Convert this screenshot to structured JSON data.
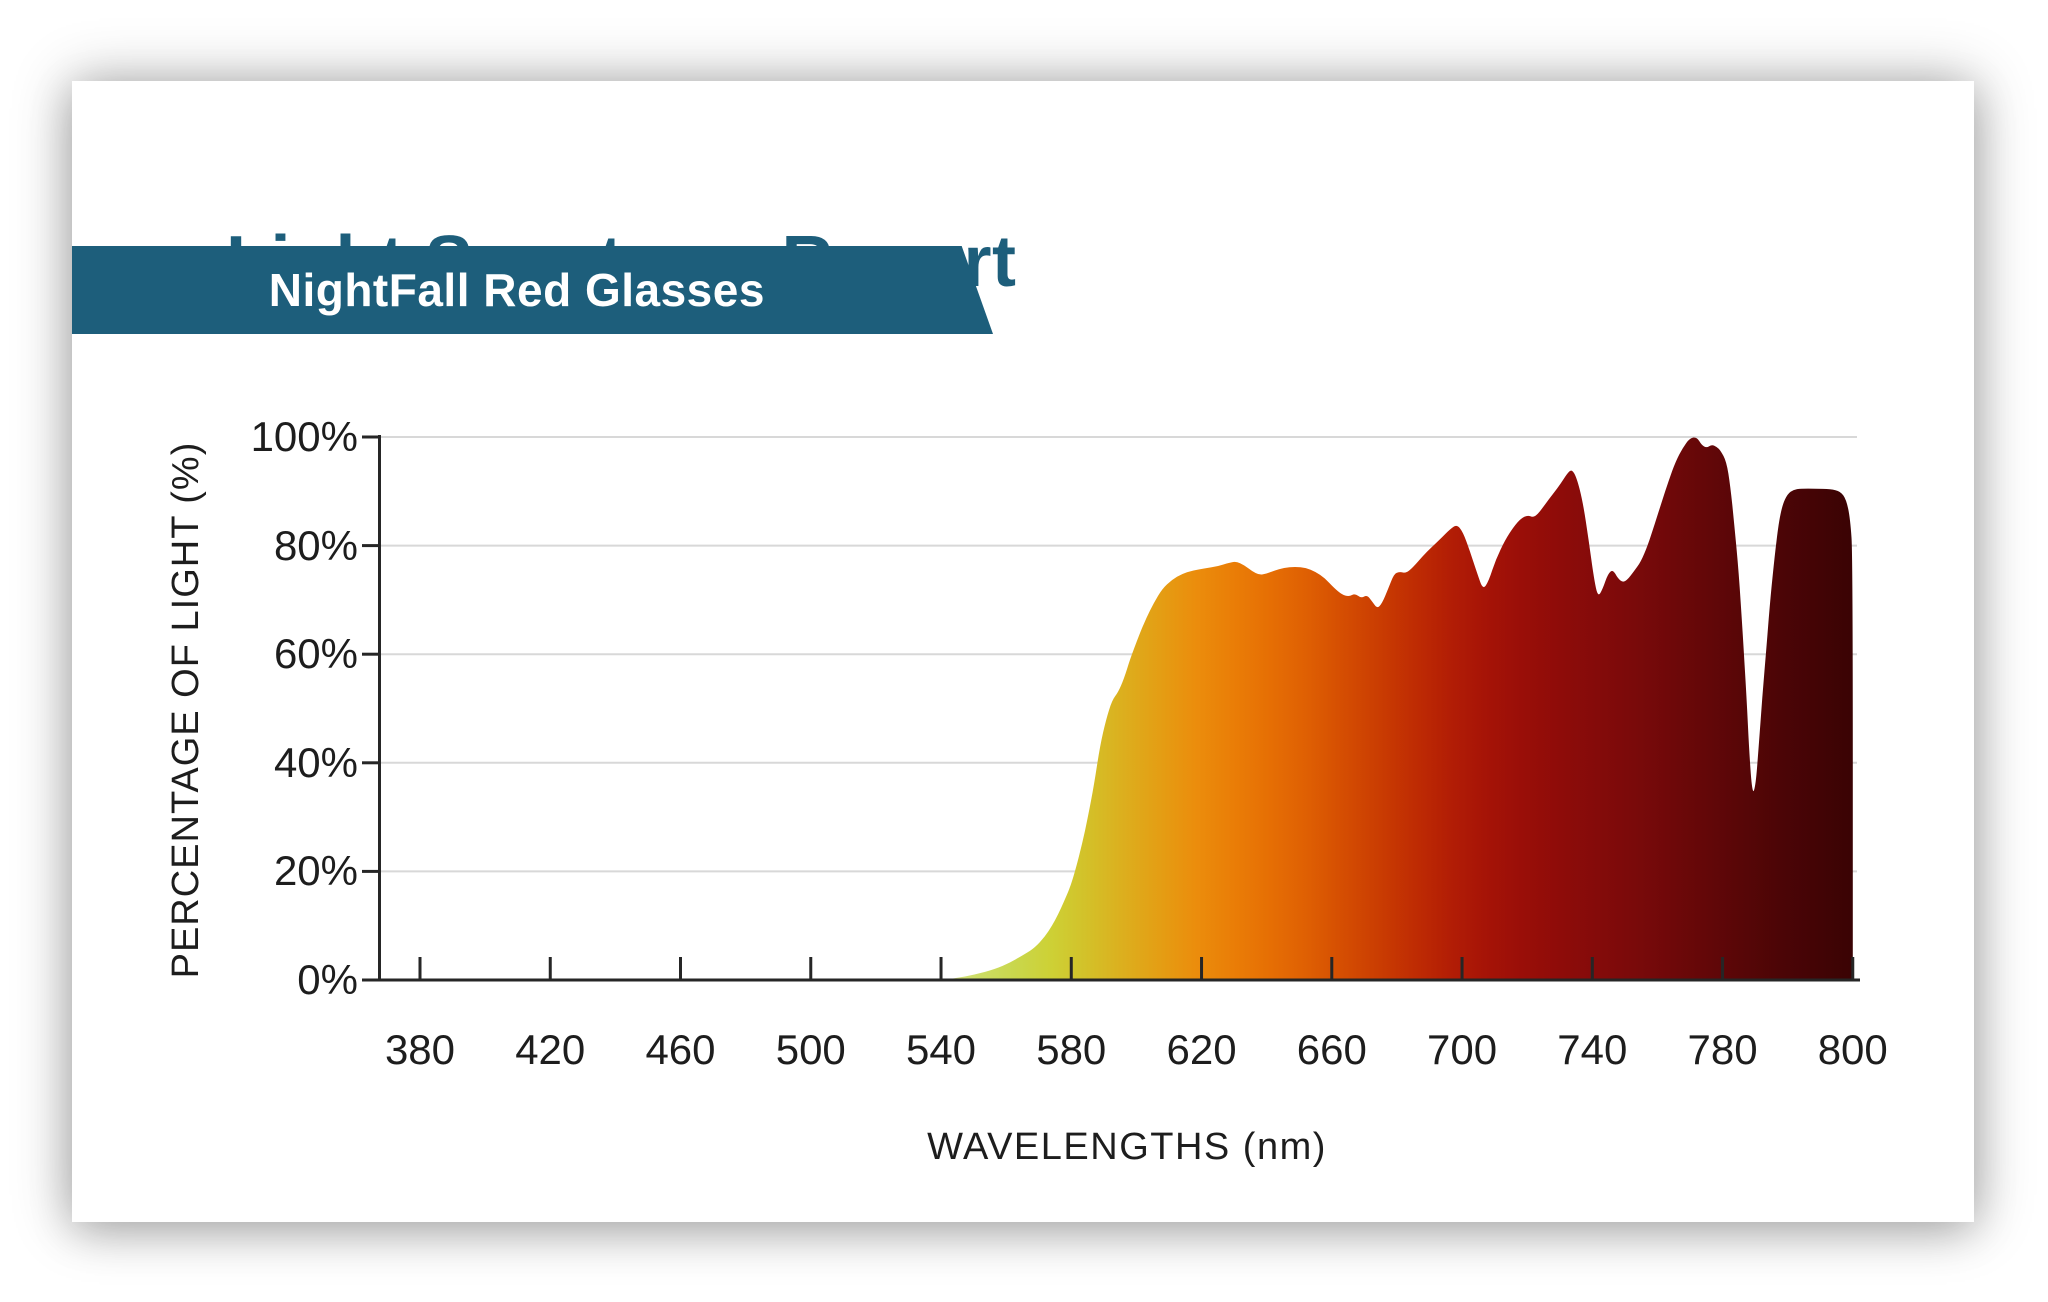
{
  "report": {
    "title": "Light Spectrum Report",
    "subtitle": "NightFall Red Glasses"
  },
  "colors": {
    "accent_teal": "#1d5e7b",
    "text_dark": "#1d1d1d",
    "gridline": "#d8d8d8",
    "axis": "#262626",
    "card_bg": "#ffffff"
  },
  "chart_data": {
    "type": "area",
    "title": "",
    "xlabel": "WAVELENGTHS (nm)",
    "ylabel": "PERCENTAGE OF LIGHT (%)",
    "x_ticks": [
      "380",
      "420",
      "460",
      "500",
      "540",
      "580",
      "620",
      "660",
      "700",
      "740",
      "780",
      "800"
    ],
    "y_ticks": [
      "0%",
      "20%",
      "40%",
      "60%",
      "80%",
      "100%"
    ],
    "xlim": [
      367,
      801
    ],
    "ylim": [
      0,
      100
    ],
    "grid": true,
    "legend": "none",
    "series": [
      {
        "name": "light-transmission",
        "points": [
          [
            539.7,
            0
          ],
          [
            544.3,
            0.3
          ],
          [
            550.4,
            1
          ],
          [
            556.6,
            2
          ],
          [
            561.2,
            3.2
          ],
          [
            565.8,
            4.8
          ],
          [
            568.9,
            6
          ],
          [
            571.9,
            8
          ],
          [
            574.1,
            10
          ],
          [
            575.9,
            12
          ],
          [
            577.8,
            14.5
          ],
          [
            579.6,
            17
          ],
          [
            581.4,
            20.5
          ],
          [
            583.3,
            25
          ],
          [
            585.1,
            30
          ],
          [
            587,
            36
          ],
          [
            588.8,
            43
          ],
          [
            590.7,
            48
          ],
          [
            592.5,
            51.5
          ],
          [
            594.4,
            53
          ],
          [
            596.2,
            55.5
          ],
          [
            598,
            59
          ],
          [
            600.5,
            63
          ],
          [
            602.9,
            66.5
          ],
          [
            605.4,
            69.5
          ],
          [
            607.9,
            72
          ],
          [
            610.9,
            73.7
          ],
          [
            614,
            74.8
          ],
          [
            617.1,
            75.4
          ],
          [
            621.1,
            75.8
          ],
          [
            625.1,
            76.2
          ],
          [
            628.1,
            76.8
          ],
          [
            630.6,
            77.1
          ],
          [
            633.1,
            76.4
          ],
          [
            635.5,
            75.3
          ],
          [
            637.7,
            74.6
          ],
          [
            639.8,
            74.8
          ],
          [
            642.3,
            75.4
          ],
          [
            645.3,
            75.9
          ],
          [
            648.7,
            76.1
          ],
          [
            652.1,
            75.9
          ],
          [
            654.9,
            75.2
          ],
          [
            657.9,
            74
          ],
          [
            660.7,
            72.2
          ],
          [
            663.1,
            71
          ],
          [
            665.3,
            70.6
          ],
          [
            667.1,
            71.2
          ],
          [
            669,
            70.3
          ],
          [
            670.8,
            70.9
          ],
          [
            672.3,
            69.8
          ],
          [
            673.9,
            68.4
          ],
          [
            675.4,
            69.3
          ],
          [
            677.3,
            72
          ],
          [
            679.1,
            74.8
          ],
          [
            680.9,
            75.2
          ],
          [
            682.8,
            74.9
          ],
          [
            684.9,
            76
          ],
          [
            687.7,
            77.9
          ],
          [
            690.8,
            79.8
          ],
          [
            693.8,
            81.5
          ],
          [
            696.3,
            83
          ],
          [
            698.4,
            83.9
          ],
          [
            700.3,
            82.5
          ],
          [
            702.4,
            79
          ],
          [
            704.6,
            75
          ],
          [
            706.4,
            71.8
          ],
          [
            708.2,
            73.5
          ],
          [
            710.4,
            77.5
          ],
          [
            713.2,
            81
          ],
          [
            715.9,
            83.5
          ],
          [
            718.1,
            85
          ],
          [
            720.2,
            85.6
          ],
          [
            721.8,
            85.2
          ],
          [
            723.3,
            85.8
          ],
          [
            725.4,
            87.5
          ],
          [
            727.9,
            89.5
          ],
          [
            730.4,
            91.5
          ],
          [
            732.2,
            93.2
          ],
          [
            733.7,
            94.1
          ],
          [
            735.2,
            92.5
          ],
          [
            737.1,
            88
          ],
          [
            738.9,
            81
          ],
          [
            740.5,
            74
          ],
          [
            741.7,
            70.5
          ],
          [
            743.2,
            72
          ],
          [
            744.8,
            74.8
          ],
          [
            746.3,
            75.6
          ],
          [
            747.8,
            74
          ],
          [
            749.4,
            73.2
          ],
          [
            750.9,
            73.8
          ],
          [
            752.7,
            75.2
          ],
          [
            754.9,
            77
          ],
          [
            757,
            80
          ],
          [
            759.2,
            84
          ],
          [
            761.3,
            88
          ],
          [
            763.5,
            92
          ],
          [
            765.6,
            95.5
          ],
          [
            767.8,
            98
          ],
          [
            769.9,
            99.8
          ],
          [
            772.1,
            100
          ],
          [
            773.6,
            98.5
          ],
          [
            775.1,
            98
          ],
          [
            776.7,
            98.6
          ],
          [
            778.2,
            98.2
          ],
          [
            779.4,
            97.5
          ],
          [
            780.6,
            95.5
          ],
          [
            781.2,
            91
          ],
          [
            781.8,
            84
          ],
          [
            782.5,
            75
          ],
          [
            783.1,
            64
          ],
          [
            783.7,
            52
          ],
          [
            784.1,
            42
          ],
          [
            784.6,
            34
          ],
          [
            785.1,
            36
          ],
          [
            785.5,
            42
          ],
          [
            786.1,
            52
          ],
          [
            786.8,
            62
          ],
          [
            787.4,
            71
          ],
          [
            788,
            78
          ],
          [
            788.6,
            84
          ],
          [
            789.2,
            87.5
          ],
          [
            790,
            89.5
          ],
          [
            790.9,
            90.3
          ],
          [
            792,
            90.5
          ],
          [
            794.3,
            90.5
          ],
          [
            796.6,
            90.4
          ],
          [
            798.1,
            90
          ],
          [
            799,
            88.5
          ],
          [
            799.6,
            85
          ],
          [
            800,
            78
          ],
          [
            800,
            0
          ]
        ]
      }
    ],
    "gradient_stops": [
      [
        0.0,
        "#dbe68c"
      ],
      [
        0.04,
        "#cddd66"
      ],
      [
        0.08,
        "#c9d74d"
      ],
      [
        0.12,
        "#cdd136"
      ],
      [
        0.16,
        "#d3c129"
      ],
      [
        0.2,
        "#dcaf1e"
      ],
      [
        0.24,
        "#e49e14"
      ],
      [
        0.28,
        "#eb8d0c"
      ],
      [
        0.32,
        "#ea7e07"
      ],
      [
        0.36,
        "#e66f04"
      ],
      [
        0.4,
        "#df6003"
      ],
      [
        0.44,
        "#d54e02"
      ],
      [
        0.48,
        "#ca3d02"
      ],
      [
        0.52,
        "#bf2c03"
      ],
      [
        0.56,
        "#b21d05"
      ],
      [
        0.6,
        "#a51307"
      ],
      [
        0.64,
        "#990e08"
      ],
      [
        0.68,
        "#8e0c09"
      ],
      [
        0.72,
        "#840b0a"
      ],
      [
        0.76,
        "#7a0a0a"
      ],
      [
        0.8,
        "#6f0809"
      ],
      [
        0.84,
        "#630708"
      ],
      [
        0.88,
        "#570607"
      ],
      [
        0.92,
        "#4c0506"
      ],
      [
        0.96,
        "#430405"
      ],
      [
        1.0,
        "#3a0304"
      ]
    ]
  }
}
